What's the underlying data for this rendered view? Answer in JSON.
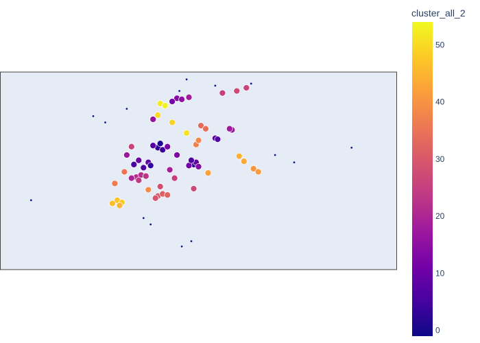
{
  "chart_data": {
    "type": "scatter",
    "subtype": "scatter-geo",
    "title": "",
    "xlabel": "",
    "ylabel": "",
    "lon_range": [
      -82.2,
      -65.6
    ],
    "lat_range": [
      -5.4,
      13.4
    ],
    "colorscale": [
      "#0d0887",
      "#46039f",
      "#7201a8",
      "#9c179e",
      "#bd3786",
      "#d8576b",
      "#ed7953",
      "#fb9f3a",
      "#fdca26",
      "#f0f921"
    ],
    "colorbar": {
      "title": "cluster_all_2",
      "range": [
        -1,
        54
      ],
      "tickvals": [
        0,
        10,
        20,
        30,
        40,
        50
      ],
      "ticktext": [
        "0",
        "10",
        "20",
        "30",
        "40",
        "50"
      ]
    },
    "map_colors": {
      "land": "#e5ecf6",
      "frame": "#444444"
    },
    "point_colors": {
      "outline": "#ffffff"
    },
    "series": [
      {
        "name": "",
        "note": "points: [lon, lat, cluster]; cluster -1 = noise",
        "points": [
          [
            -76.6,
            4.6,
            5
          ],
          [
            -76.2,
            4.3,
            6
          ],
          [
            -76.0,
            4.8,
            8
          ],
          [
            -75.9,
            4.5,
            3
          ],
          [
            -76.4,
            5.0,
            10
          ],
          [
            -75.6,
            6.2,
            3
          ],
          [
            -75.4,
            6.0,
            4
          ],
          [
            -75.8,
            6.4,
            7
          ],
          [
            -75.5,
            6.6,
            1
          ],
          [
            -75.2,
            6.3,
            12
          ],
          [
            -74.1,
            4.6,
            2
          ],
          [
            -74.0,
            4.8,
            9
          ],
          [
            -74.3,
            4.5,
            11
          ],
          [
            -73.9,
            4.4,
            14
          ],
          [
            -74.2,
            5.0,
            6
          ],
          [
            -76.5,
            3.4,
            21
          ],
          [
            -76.3,
            3.6,
            22
          ],
          [
            -76.7,
            3.3,
            20
          ],
          [
            -76.4,
            3.1,
            24
          ],
          [
            -76.1,
            3.5,
            23
          ],
          [
            -75.6,
            1.6,
            30
          ],
          [
            -75.4,
            1.8,
            31
          ],
          [
            -75.7,
            1.4,
            29
          ],
          [
            -75.2,
            1.7,
            32
          ],
          [
            -77.3,
            1.2,
            47
          ],
          [
            -77.1,
            1.0,
            48
          ],
          [
            -77.5,
            0.9,
            46
          ],
          [
            -77.2,
            0.7,
            45
          ],
          [
            -74.8,
            10.9,
            14
          ],
          [
            -74.6,
            10.8,
            15
          ],
          [
            -75.0,
            10.6,
            12
          ],
          [
            -74.3,
            11.0,
            18
          ],
          [
            -75.5,
            10.4,
            52
          ],
          [
            -75.3,
            10.2,
            53
          ],
          [
            -75.6,
            9.3,
            50
          ],
          [
            -75.8,
            8.9,
            16
          ],
          [
            -73.2,
            7.1,
            8
          ],
          [
            -73.1,
            7.0,
            7
          ],
          [
            -72.5,
            7.9,
            16
          ],
          [
            -72.6,
            8.0,
            18
          ],
          [
            -73.8,
            8.3,
            33
          ],
          [
            -73.6,
            8.0,
            34
          ],
          [
            -74.0,
            6.5,
            37
          ],
          [
            -73.9,
            6.9,
            38
          ],
          [
            -72.0,
            4.9,
            43
          ],
          [
            -72.2,
            5.4,
            44
          ],
          [
            -71.6,
            4.2,
            40
          ],
          [
            -71.4,
            3.9,
            41
          ],
          [
            -77.4,
            2.8,
            36
          ],
          [
            -77.0,
            3.9,
            35
          ],
          [
            -76.9,
            5.5,
            17
          ],
          [
            -76.7,
            6.3,
            26
          ],
          [
            -74.8,
            5.5,
            13
          ],
          [
            -75.1,
            4.1,
            19
          ],
          [
            -74.9,
            3.3,
            25
          ],
          [
            -74.1,
            2.3,
            27
          ],
          [
            -75.5,
            2.5,
            28
          ],
          [
            -76.0,
            2.2,
            39
          ],
          [
            -73.5,
            3.8,
            42
          ],
          [
            -74.4,
            7.6,
            51
          ],
          [
            -75.0,
            8.6,
            49
          ],
          [
            -72.3,
            11.6,
            27
          ],
          [
            -71.9,
            11.9,
            26
          ],
          [
            -72.9,
            11.4,
            25
          ],
          [
            -71.7,
            12.3,
            -1
          ],
          [
            -67.5,
            6.2,
            -1
          ],
          [
            -70.7,
            5.5,
            -1
          ],
          [
            -69.9,
            4.8,
            -1
          ],
          [
            -73.2,
            12.1,
            -1
          ],
          [
            -74.7,
            11.6,
            -1
          ],
          [
            -77.8,
            8.6,
            -1
          ],
          [
            -76.2,
            -0.5,
            -1
          ],
          [
            -75.9,
            -1.1,
            -1
          ],
          [
            -74.2,
            -2.7,
            -1
          ],
          [
            -74.6,
            -3.2,
            -1
          ],
          [
            -76.9,
            9.9,
            -1
          ],
          [
            -80.9,
            1.2,
            -1
          ],
          [
            -78.3,
            9.2,
            -1
          ],
          [
            -74.4,
            12.7,
            -1
          ]
        ]
      }
    ]
  }
}
